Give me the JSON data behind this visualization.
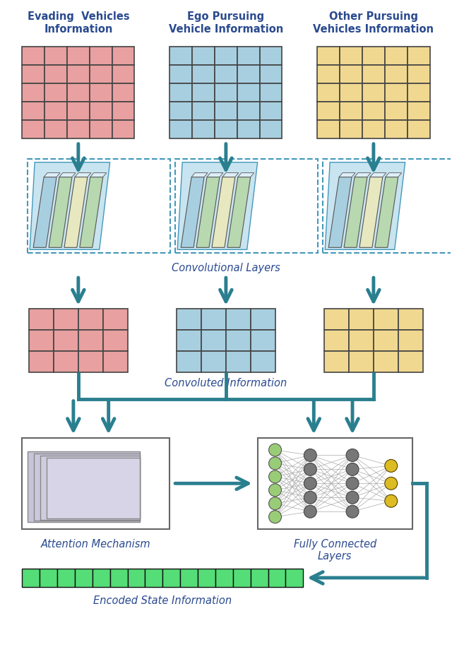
{
  "bg_color": "#ffffff",
  "arrow_color": "#2a7f8f",
  "grid_colors": {
    "red": "#e8a0a0",
    "blue": "#a8cfe0",
    "yellow": "#f0d890"
  },
  "grid_edge": "#444444",
  "labels": {
    "evading": "Evading  Vehicles\nInformation",
    "ego": "Ego Pursuing\nVehicle Information",
    "other": "Other Pursuing\nVehicles Information",
    "conv": "Convolutional Layers",
    "convolved": "Convoluted Information",
    "attention": "Attention Mechanism",
    "fc": "Fully Connected\nLayers",
    "encoded": "Encoded State Information"
  },
  "label_color": "#2a4a8f",
  "encoded_bar_color": "#55dd77",
  "encoded_bar_edge": "#111111",
  "node_green": "#99cc77",
  "node_gray": "#777777",
  "node_yellow": "#ddbb22",
  "conn_color": "#aaaaaa"
}
